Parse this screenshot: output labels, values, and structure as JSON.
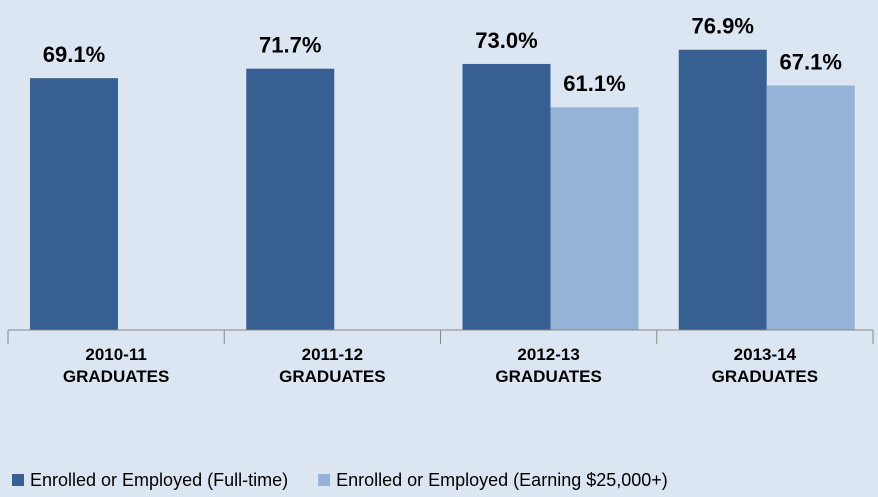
{
  "chart_data": {
    "type": "bar",
    "categories": [
      "2010-11 GRADUATES",
      "2011-12 GRADUATES",
      "2012-13 GRADUATES",
      "2013-14 GRADUATES"
    ],
    "series": [
      {
        "name": "Enrolled or Employed (Full-time)",
        "color": "#375f91",
        "values": [
          69.1,
          71.7,
          73.0,
          76.9
        ],
        "value_labels": [
          "69.1%",
          "71.7%",
          "73.0%",
          "76.9%"
        ]
      },
      {
        "name": "Enrolled or Employed (Earning $25,000+)",
        "color": "#95b3d7",
        "values": [
          null,
          null,
          61.1,
          67.1
        ],
        "value_labels": [
          null,
          null,
          "61.1%",
          "67.1%"
        ]
      }
    ],
    "ylim": [
      0,
      90
    ],
    "legend": "bottom"
  }
}
